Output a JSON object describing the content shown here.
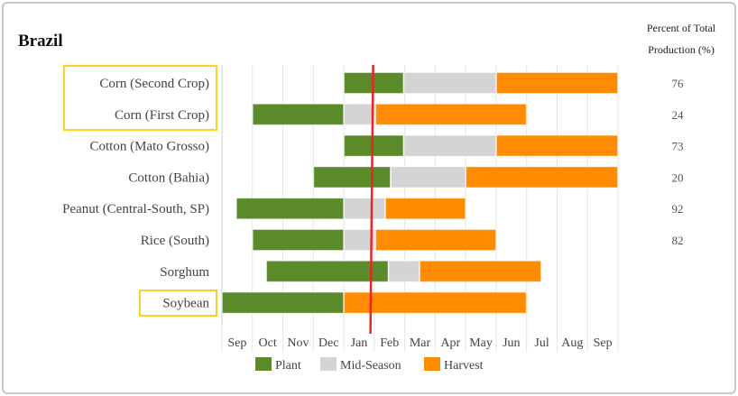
{
  "chart_data": {
    "type": "gantt",
    "title": "Brazil",
    "x_ticks": [
      "Sep",
      "Oct",
      "Nov",
      "Dec",
      "Jan",
      "Feb",
      "Mar",
      "Apr",
      "May",
      "Jun",
      "Jul",
      "Aug",
      "Sep"
    ],
    "grid": "vertical",
    "legend_placement": "bottom",
    "legend": [
      {
        "name": "Plant",
        "color": "#5a8a2a"
      },
      {
        "name": "Mid-Season",
        "color": "#d4d3d5"
      },
      {
        "name": "Harvest",
        "color": "#ff8c00"
      }
    ],
    "today_marker": {
      "date": "Jan 29",
      "color": "#e8262a"
    },
    "highlight_color": "#ffd02a",
    "percent_header": [
      "Percent of Total",
      "Production (%)"
    ],
    "rows": [
      {
        "crop": "Corn (Second Crop)",
        "percent": "76",
        "highlighted": true,
        "segments": [
          {
            "phase": "Plant",
            "start": "Jan 1",
            "end": "Feb 27"
          },
          {
            "phase": "Mid-Season",
            "start": "Feb 28",
            "end": "May 31"
          },
          {
            "phase": "Harvest",
            "start": "Jun 1",
            "end": "Sep 30"
          }
        ]
      },
      {
        "crop": "Corn (First Crop)",
        "percent": "24",
        "highlighted": true,
        "segments": [
          {
            "phase": "Plant",
            "start": "Oct 1",
            "end": "Dec 31"
          },
          {
            "phase": "Mid-Season",
            "start": "Jan 1",
            "end": "Feb 1"
          },
          {
            "phase": "Harvest",
            "start": "Feb 2",
            "end": "Jun 30"
          }
        ]
      },
      {
        "crop": "Cotton (Mato Grosso)",
        "percent": "73",
        "highlighted": false,
        "segments": [
          {
            "phase": "Plant",
            "start": "Jan 1",
            "end": "Feb 27"
          },
          {
            "phase": "Mid-Season",
            "start": "Feb 28",
            "end": "May 31"
          },
          {
            "phase": "Harvest",
            "start": "Jun 1",
            "end": "Sep 30"
          }
        ]
      },
      {
        "crop": "Cotton (Bahia)",
        "percent": "20",
        "highlighted": false,
        "segments": [
          {
            "phase": "Plant",
            "start": "Dec 1",
            "end": "Feb 15"
          },
          {
            "phase": "Mid-Season",
            "start": "Feb 16",
            "end": "Apr 30"
          },
          {
            "phase": "Harvest",
            "start": "May 1",
            "end": "Sep 30"
          }
        ]
      },
      {
        "crop": "Peanut (Central-South, SP)",
        "percent": "92",
        "highlighted": false,
        "segments": [
          {
            "phase": "Plant",
            "start": "Sep 15",
            "end": "Dec 31"
          },
          {
            "phase": "Mid-Season",
            "start": "Jan 1",
            "end": "Feb 10"
          },
          {
            "phase": "Harvest",
            "start": "Feb 11",
            "end": "Apr 30"
          }
        ]
      },
      {
        "crop": "Rice (South)",
        "percent": "82",
        "highlighted": false,
        "segments": [
          {
            "phase": "Plant",
            "start": "Oct 1",
            "end": "Dec 31"
          },
          {
            "phase": "Mid-Season",
            "start": "Jan 1",
            "end": "Feb 1"
          },
          {
            "phase": "Harvest",
            "start": "Feb 2",
            "end": "May 31"
          }
        ]
      },
      {
        "crop": "Sorghum",
        "percent": "",
        "highlighted": false,
        "segments": [
          {
            "phase": "Plant",
            "start": "Oct 15",
            "end": "Feb 13"
          },
          {
            "phase": "Mid-Season",
            "start": "Feb 14",
            "end": "Mar 15"
          },
          {
            "phase": "Harvest",
            "start": "Mar 16",
            "end": "Jul 15"
          }
        ]
      },
      {
        "crop": "Soybean",
        "percent": "",
        "highlighted": true,
        "segments": [
          {
            "phase": "Plant",
            "start": "Sep 1",
            "end": "Dec 31"
          },
          {
            "phase": "Harvest",
            "start": "Jan 1",
            "end": "Jun 30"
          }
        ]
      }
    ]
  }
}
